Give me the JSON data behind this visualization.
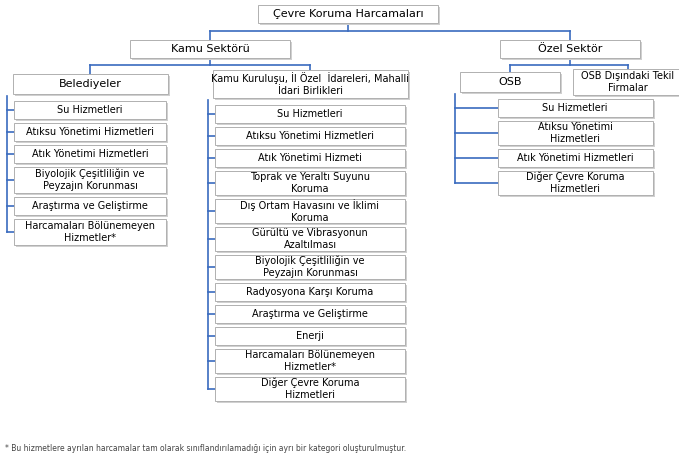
{
  "bg_color": "#ffffff",
  "line_color": "#3a6bbf",
  "text_color": "#000000",
  "box_face": "#ffffff",
  "box_edge_main": "#b0b0b0",
  "box_shadow": "#c8c8c8",
  "root_label": "Çevre Koruma Harcamaları",
  "kamu_label": "Kamu Sektörü",
  "ozel_label": "Özel Sektör",
  "belediye_label": "Belediyeler",
  "kamukur_label": "Kamu Kuruluşu, İl Özel  İdareleri, Mahalli\nİdari Birlikleri",
  "osb_label": "OSB",
  "osbdis_label": "OSB Dışındaki Tekil\nFirmalar",
  "bel_children": [
    "Su Hizmetleri",
    "Atıksu Yönetimi Hizmetleri",
    "Atık Yönetimi Hizmetleri",
    "Biyolojik Çeşitliliğin ve\nPeyzajın Korunması",
    "Araştırma ve Geliştirme",
    "Harcamaları Bölünemeyen\nHizmetler*"
  ],
  "kk_children": [
    "Su Hizmetleri",
    "Atıksu Yönetimi Hizmetleri",
    "Atık Yönetimi Hizmeti",
    "Toprak ve Yeraltı Suyunu\nKoruma",
    "Dış Ortam Havasını ve İklimi\nKoruma",
    "Gürültü ve Vibrasyonun\nAzaltılması",
    "Biyolojik Çeşitliliğin ve\nPeyzajın Korunması",
    "Radyosyona Karşı Koruma",
    "Araştırma ve Geliştirme",
    "Enerji",
    "Harcamaları Bölünemeyen\nHizmetler*",
    "Diğer Çevre Koruma\nHizmetleri"
  ],
  "osb_children": [
    "Su Hizmetleri",
    "Atıksu Yönetimi\nHizmetleri",
    "Atık Yönetimi Hizmetleri",
    "Diğer Çevre Koruma\nHizmetleri"
  ],
  "footnote": "* Bu hizmetlere ayrılan harcamalar tam olarak sınıflandırılamadığı için ayrı bir kategori oluşturulmuştur."
}
